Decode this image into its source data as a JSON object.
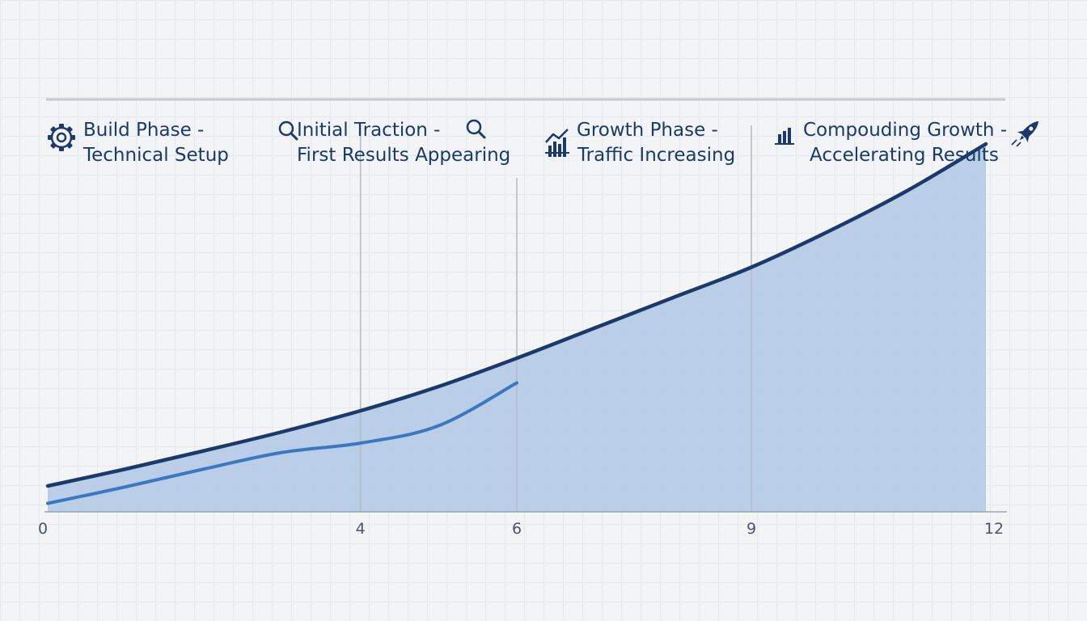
{
  "chart_data": {
    "type": "area",
    "title": "",
    "xlabel": "",
    "ylabel": "",
    "xlim": [
      0,
      12
    ],
    "ylim": [
      0,
      100
    ],
    "x_ticks": [
      "0",
      "4",
      "6",
      "9",
      "12"
    ],
    "grid": true,
    "series": [
      {
        "x": [
          0,
          1,
          2,
          3,
          4,
          5,
          6,
          7,
          8,
          9,
          10,
          11,
          12
        ],
        "values": [
          6.4,
          10.6,
          15.1,
          19.8,
          25.0,
          31.0,
          38.0,
          45.5,
          53.0,
          60.5,
          69.5,
          79.5,
          91.0
        ],
        "color": "#1b3a6b",
        "fill": "#b6cae6"
      },
      {
        "x": [
          0,
          1,
          2,
          3,
          4,
          5,
          6
        ],
        "values": [
          2.1,
          6.2,
          10.6,
          14.7,
          17.0,
          21.3,
          31.9
        ],
        "color": "#3a78c2"
      }
    ],
    "phases": [
      {
        "start": 0,
        "end": 4,
        "line1": "Build Phase -",
        "line2": "Technical Setup",
        "icon": "gear-icon"
      },
      {
        "start": 4,
        "end": 6,
        "line1": "Initial Traction -",
        "line2": "First Results Appearing",
        "icon": "magnifier-icon"
      },
      {
        "start": 6,
        "end": 9,
        "line1": "Growth Phase -",
        "line2": "Traffic Increasing",
        "icon": "growth-chart-icon"
      },
      {
        "start": 9,
        "end": 12,
        "line1": "Compouding Growth -",
        "line2": "Accelerating Results",
        "icon": "rocket-icon"
      }
    ],
    "colors": {
      "axis": "#9aa3ae",
      "divider": "#b3b9c2",
      "text": "#1b3a6b"
    }
  }
}
